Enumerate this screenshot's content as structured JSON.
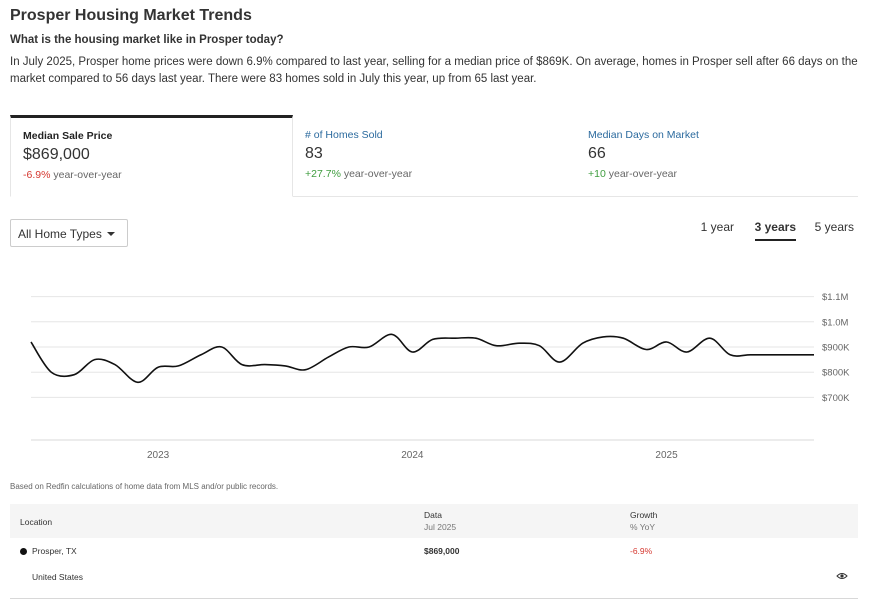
{
  "header": {
    "title": "Prosper Housing Market Trends",
    "subtitle": "What is the housing market like in Prosper today?",
    "summary": "In July 2025, Prosper home prices were down 6.9% compared to last year, selling for a median price of $869K. On average, homes in Prosper sell after 66 days on the market compared to 56 days last year. There were 83 homes sold in July this year, up from 65 last year."
  },
  "cards": [
    {
      "label": "Median Sale Price",
      "value": "$869,000",
      "change": "-6.9%",
      "change_suffix": "year-over-year",
      "active": true
    },
    {
      "label": "# of Homes Sold",
      "value": "83",
      "change": "+27.7%",
      "change_suffix": "year-over-year",
      "active": false
    },
    {
      "label": "Median Days on Market",
      "value": "66",
      "change": "+10",
      "change_suffix": "year-over-year",
      "active": false
    }
  ],
  "filters": {
    "home_type": "All Home Types",
    "ranges": [
      "1 year",
      "3 years",
      "5 years"
    ],
    "active_range": "3 years"
  },
  "chart_data": {
    "type": "line",
    "title": "",
    "xlabel": "",
    "ylabel": "",
    "ylim": [
      650000,
      1150000
    ],
    "yticks": [
      700000,
      800000,
      900000,
      1000000,
      1100000
    ],
    "ytick_labels": [
      "$700K",
      "$800K",
      "$900K",
      "$1.0M",
      "$1.1M"
    ],
    "xticks": [
      2023,
      2024,
      2025
    ],
    "xtick_labels": [
      "2023",
      "2024",
      "2025"
    ],
    "xlim": [
      2022.5,
      2025.58
    ],
    "grid": true,
    "series": [
      {
        "color": "#111111",
        "x": [
          2022.5,
          2022.58,
          2022.67,
          2022.75,
          2022.83,
          2022.92,
          2023.0,
          2023.08,
          2023.17,
          2023.25,
          2023.33,
          2023.42,
          2023.5,
          2023.58,
          2023.67,
          2023.75,
          2023.83,
          2023.92,
          2024.0,
          2024.08,
          2024.17,
          2024.25,
          2024.33,
          2024.42,
          2024.5,
          2024.58,
          2024.67,
          2024.75,
          2024.83,
          2024.92,
          2025.0,
          2025.08,
          2025.17,
          2025.25,
          2025.33,
          2025.42,
          2025.5,
          2025.58
        ],
        "values": [
          920000,
          800000,
          790000,
          850000,
          830000,
          760000,
          820000,
          825000,
          870000,
          900000,
          830000,
          830000,
          825000,
          810000,
          860000,
          900000,
          900000,
          950000,
          880000,
          930000,
          935000,
          935000,
          905000,
          915000,
          905000,
          840000,
          915000,
          940000,
          935000,
          890000,
          920000,
          880000,
          935000,
          869000,
          869000,
          869000,
          869000,
          869000
        ]
      }
    ]
  },
  "footnote": "Based on Redfin calculations of home data from MLS and/or public records.",
  "table": {
    "headers": {
      "location": "Location",
      "data": "Data",
      "data_sub": "Jul 2025",
      "growth": "Growth",
      "growth_sub": "% YoY"
    },
    "rows": [
      {
        "location": "Prosper, TX",
        "data": "$869,000",
        "growth": "-6.9%"
      },
      {
        "location": "United States",
        "data": "",
        "growth": ""
      }
    ]
  }
}
